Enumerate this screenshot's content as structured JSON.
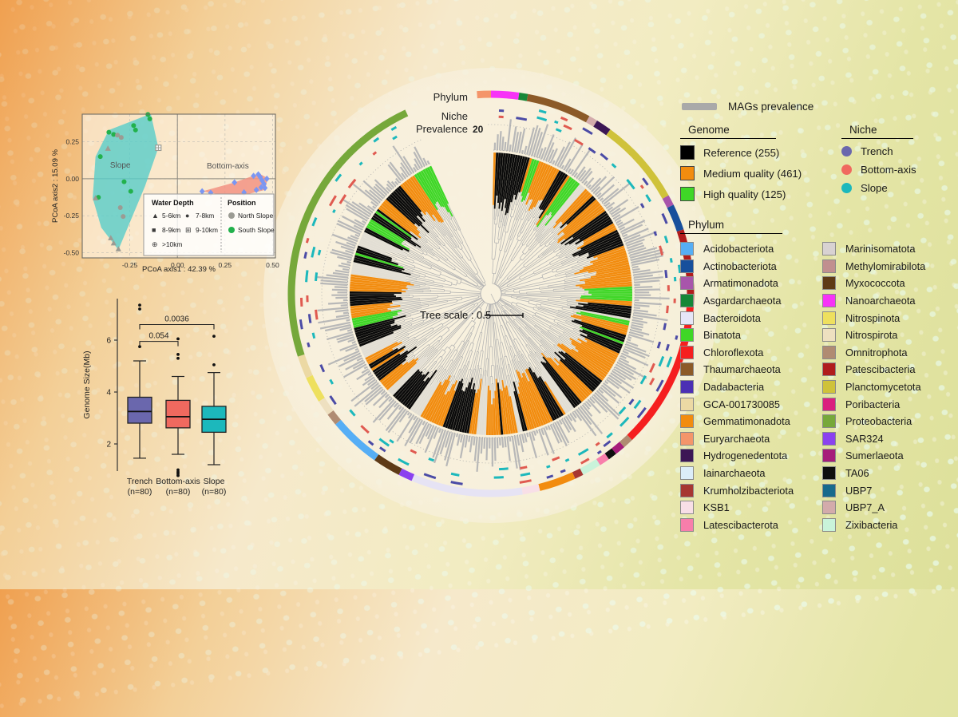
{
  "legend": {
    "mags": {
      "label": "MAGs prevalence",
      "color": "#a9a9a9"
    },
    "genome": {
      "title": "Genome",
      "items": [
        {
          "label": "Reference (255)",
          "color": "#000000"
        },
        {
          "label": "Medium quality (461)",
          "color": "#f28c0f"
        },
        {
          "label": "High quality (125)",
          "color": "#3fd727"
        }
      ]
    },
    "niche": {
      "title": "Niche",
      "items": [
        {
          "label": "Trench",
          "color": "#6a67ad"
        },
        {
          "label": "Bottom-axis",
          "color": "#f0695f"
        },
        {
          "label": "Slope",
          "color": "#1cb8bc"
        }
      ]
    },
    "phylum": {
      "title": "Phylum",
      "col1": [
        {
          "label": "Acidobacteriota",
          "color": "#56aef5"
        },
        {
          "label": "Actinobacteriota",
          "color": "#174f9c"
        },
        {
          "label": "Armatimonadota",
          "color": "#a855ab"
        },
        {
          "label": "Asgardarchaeota",
          "color": "#168737"
        },
        {
          "label": "Bacteroidota",
          "color": "#e6e6f7"
        },
        {
          "label": "Binatota",
          "color": "#3fd727"
        },
        {
          "label": "Chloroflexota",
          "color": "#f51f1f"
        },
        {
          "label": "Thaumarchaeota",
          "color": "#8c5a28"
        },
        {
          "label": "Dadabacteria",
          "color": "#4b2fb4"
        },
        {
          "label": "GCA-001730085",
          "color": "#ecd9a4"
        },
        {
          "label": "Gemmatimonadota",
          "color": "#f28c0f"
        },
        {
          "label": "Euryarchaeota",
          "color": "#f4956a"
        },
        {
          "label": "Hydrogenedentota",
          "color": "#3c1655"
        },
        {
          "label": "Iainarchaeota",
          "color": "#dcedf8"
        },
        {
          "label": "Krumholzibacteriota",
          "color": "#a63732"
        },
        {
          "label": "KSB1",
          "color": "#f8dfe7"
        },
        {
          "label": "Latescibacterota",
          "color": "#f87eab"
        }
      ],
      "col2": [
        {
          "label": "Marinisomatota",
          "color": "#d8d2d2"
        },
        {
          "label": "Methylomirabilota",
          "color": "#c18f8f"
        },
        {
          "label": "Myxococcota",
          "color": "#5e3a16"
        },
        {
          "label": "Nanoarchaeota",
          "color": "#f733f7"
        },
        {
          "label": "Nitrospinota",
          "color": "#eee05e"
        },
        {
          "label": "Nitrospirota",
          "color": "#eee0c0"
        },
        {
          "label": "Omnitrophota",
          "color": "#b08b72"
        },
        {
          "label": "Patescibacteria",
          "color": "#b01c1c"
        },
        {
          "label": "Planctomycetota",
          "color": "#cfc23a"
        },
        {
          "label": "Poribacteria",
          "color": "#da1f7e"
        },
        {
          "label": "Proteobacteria",
          "color": "#76a83a"
        },
        {
          "label": "SAR324",
          "color": "#8b41ef"
        },
        {
          "label": "Sumerlaeota",
          "color": "#a61c7a"
        },
        {
          "label": "TA06",
          "color": "#0f0f0f"
        },
        {
          "label": "UBP7",
          "color": "#176a8c"
        },
        {
          "label": "UBP7_A",
          "color": "#d3abab"
        },
        {
          "label": "Zixibacteria",
          "color": "#c9f3da"
        }
      ]
    }
  },
  "chart_data": [
    {
      "id": "pcoa",
      "type": "scatter",
      "xlabel": "PCoA axis1 : 42.39 %",
      "ylabel": "PCoA axis2 : 15.09 %",
      "xticks": [
        -0.25,
        0.0,
        0.25,
        0.5
      ],
      "yticks": [
        0.25,
        0.0,
        -0.25,
        -0.5
      ],
      "xlim": [
        -0.5,
        0.515
      ],
      "ylim": [
        -0.535,
        0.437
      ],
      "groups": [
        {
          "name": "Slope",
          "label_pos": [
            -0.3,
            0.075
          ],
          "fill": "#57cdc9",
          "fill_opacity": 0.8,
          "hull": [
            [
              -0.36,
              0.33
            ],
            [
              -0.14,
              0.44
            ],
            [
              -0.1,
              0.21
            ],
            [
              -0.17,
              -0.05
            ],
            [
              -0.31,
              -0.48
            ],
            [
              -0.4,
              -0.33
            ],
            [
              -0.445,
              -0.13
            ],
            [
              -0.43,
              0.15
            ]
          ]
        },
        {
          "name": "Bottom-axis",
          "label_pos": [
            0.265,
            0.07
          ],
          "fill": "#f29382",
          "fill_opacity": 0.85,
          "hull": [
            [
              0.13,
              -0.085
            ],
            [
              0.22,
              -0.105
            ],
            [
              0.35,
              -0.11
            ],
            [
              0.46,
              -0.075
            ],
            [
              0.475,
              0.005
            ],
            [
              0.43,
              0.035
            ],
            [
              0.3,
              -0.025
            ]
          ]
        }
      ],
      "points": [
        {
          "x": -0.36,
          "y": 0.315,
          "shape": "circle",
          "color": "#22b14c"
        },
        {
          "x": -0.335,
          "y": 0.3,
          "shape": "circle",
          "color": "#22b14c"
        },
        {
          "x": -0.23,
          "y": 0.36,
          "shape": "circle",
          "color": "#22b14c"
        },
        {
          "x": -0.155,
          "y": 0.435,
          "shape": "circle",
          "color": "#22b14c"
        },
        {
          "x": -0.145,
          "y": 0.405,
          "shape": "circle",
          "color": "#22b14c"
        },
        {
          "x": -0.405,
          "y": 0.15,
          "shape": "circle",
          "color": "#22b14c"
        },
        {
          "x": -0.28,
          "y": -0.02,
          "shape": "circle",
          "color": "#22b14c"
        },
        {
          "x": -0.245,
          "y": -0.085,
          "shape": "circle",
          "color": "#22b14c"
        },
        {
          "x": -0.415,
          "y": -0.125,
          "shape": "circle",
          "color": "#22b14c"
        },
        {
          "x": -0.22,
          "y": 0.33,
          "shape": "circle",
          "color": "#22b14c"
        },
        {
          "x": -0.315,
          "y": 0.295,
          "shape": "circle",
          "color": "#9b9b93"
        },
        {
          "x": -0.295,
          "y": 0.28,
          "shape": "circle",
          "color": "#9b9b93"
        },
        {
          "x": -0.3,
          "y": -0.195,
          "shape": "circle",
          "color": "#9b9b93"
        },
        {
          "x": -0.285,
          "y": -0.255,
          "shape": "circle",
          "color": "#9b9b93"
        },
        {
          "x": -0.365,
          "y": 0.205,
          "shape": "triangle",
          "color": "#9b9b93"
        },
        {
          "x": -0.43,
          "y": -0.13,
          "shape": "triangle",
          "color": "#9b9b93"
        },
        {
          "x": -0.35,
          "y": -0.4,
          "shape": "triangle",
          "color": "#9b9b93"
        },
        {
          "x": -0.335,
          "y": -0.435,
          "shape": "triangle",
          "color": "#9b9b93"
        },
        {
          "x": -0.31,
          "y": -0.475,
          "shape": "triangle",
          "color": "#9b9b93"
        },
        {
          "x": -0.1,
          "y": 0.21,
          "shape": "square-plus",
          "color": "#9b9b93"
        },
        {
          "x": 0.13,
          "y": -0.085,
          "shape": "diamond",
          "color": "#7b96f2"
        },
        {
          "x": 0.175,
          "y": -0.095,
          "shape": "diamond",
          "color": "#7b96f2"
        },
        {
          "x": 0.3,
          "y": -0.025,
          "shape": "diamond",
          "color": "#7b96f2"
        },
        {
          "x": 0.4,
          "y": 0.02,
          "shape": "diamond",
          "color": "#7b96f2"
        },
        {
          "x": 0.425,
          "y": 0.03,
          "shape": "diamond",
          "color": "#7b96f2"
        },
        {
          "x": 0.445,
          "y": -0.012,
          "shape": "diamond",
          "color": "#7b96f2"
        },
        {
          "x": 0.455,
          "y": -0.035,
          "shape": "diamond",
          "color": "#7b96f2"
        },
        {
          "x": 0.44,
          "y": -0.058,
          "shape": "diamond",
          "color": "#7b96f2"
        },
        {
          "x": 0.415,
          "y": -0.075,
          "shape": "diamond",
          "color": "#7b96f2"
        },
        {
          "x": 0.46,
          "y": -0.062,
          "shape": "diamond",
          "color": "#7b96f2"
        },
        {
          "x": 0.35,
          "y": -0.092,
          "shape": "diamond",
          "color": "#7b96f2"
        },
        {
          "x": 0.47,
          "y": 0.0,
          "shape": "diamond",
          "color": "#7b96f2"
        },
        {
          "x": 0.435,
          "y": 0.012,
          "shape": "diamond",
          "color": "#7b96f2"
        }
      ],
      "legend": {
        "water_depth": {
          "title": "Water Depth",
          "items": [
            {
              "symbol": "triangle",
              "label": "5-6km"
            },
            {
              "symbol": "circle",
              "label": "7-8km"
            },
            {
              "symbol": "square",
              "label": "8-9km"
            },
            {
              "symbol": "square-plus",
              "label": "9-10km"
            },
            {
              "symbol": "circle-plus",
              "label": ">10km"
            }
          ]
        },
        "position": {
          "title": "Position",
          "items": [
            {
              "color": "#9b9b93",
              "label": "North Slope"
            },
            {
              "color": "#22b14c",
              "label": "South Slope"
            }
          ]
        }
      }
    },
    {
      "id": "boxplot",
      "type": "box",
      "ylabel": "Genome Size(Mb)",
      "yticks": [
        2,
        4,
        6
      ],
      "boxes": [
        {
          "name": "Trench",
          "sub": "(n=80)",
          "color": "#6a67ad",
          "low": 1.45,
          "q1": 2.8,
          "median": 3.25,
          "q3": 3.8,
          "high": 5.2,
          "outliers": [
            5.75,
            7.2,
            7.35
          ]
        },
        {
          "name": "Bottom-axis",
          "sub": "(n=80)",
          "color": "#f0695f",
          "low": 1.6,
          "q1": 2.62,
          "median": 3.05,
          "q3": 3.68,
          "high": 4.6,
          "outliers": [
            5.3,
            5.45,
            6.05,
            1.0,
            0.92,
            0.85,
            0.78
          ]
        },
        {
          "name": "Slope",
          "sub": "(n=80)",
          "color": "#1cb8bc",
          "low": 1.2,
          "q1": 2.45,
          "median": 2.95,
          "q3": 3.45,
          "high": 4.75,
          "outliers": [
            5.05,
            6.15
          ]
        }
      ],
      "comparisons": [
        {
          "a": 0,
          "b": 1,
          "p": "0.054",
          "y": 5.95
        },
        {
          "a": 0,
          "b": 2,
          "p": "0.0036",
          "y": 6.6
        }
      ]
    },
    {
      "id": "circular-tree",
      "type": "circular-phylogeny",
      "labels": {
        "phylum": "Phylum",
        "niche": "Niche",
        "prevalence": "Prevalence",
        "prevalence_scale": "20",
        "tree_scale": "Tree scale : 0.5"
      },
      "leaf_total": 841,
      "quality_counts": {
        "Reference": 255,
        "Medium quality": 461,
        "High quality": 125
      },
      "quality_colors": {
        "reference": "#0a0a0a",
        "medium": "#f28c0f",
        "high": "#3fd727",
        "none": "#cccccc"
      },
      "prevalence": {
        "color": "#b8b8b8",
        "scale_max": 20
      },
      "niche_dash_colors": {
        "trench": "#4b4ba6",
        "bottom_axis": "#e05a50",
        "slope": "#1cb8bc"
      },
      "gap_deg": [
        336,
        360
      ],
      "phylum_ring": [
        {
          "a0": 356,
          "a1": 360,
          "color": "#f4956a"
        },
        {
          "a0": 0,
          "a1": 8,
          "color": "#f733f7"
        },
        {
          "a0": 8,
          "a1": 10.5,
          "color": "#168737"
        },
        {
          "a0": 10.5,
          "a1": 29,
          "color": "#8c5a28"
        },
        {
          "a0": 29,
          "a1": 31.5,
          "color": "#d3abab"
        },
        {
          "a0": 31.5,
          "a1": 36,
          "color": "#3c1655"
        },
        {
          "a0": 36,
          "a1": 61,
          "color": "#cfc23a"
        },
        {
          "a0": 61,
          "a1": 64,
          "color": "#a855ab"
        },
        {
          "a0": 64,
          "a1": 71.5,
          "color": "#174f9c"
        },
        {
          "a0": 71.5,
          "a1": 93,
          "color": "#b01c1c"
        },
        {
          "a0": 93,
          "a1": 136,
          "color": "#f51f1f"
        },
        {
          "a0": 136,
          "a1": 139,
          "color": "#b08b72"
        },
        {
          "a0": 139,
          "a1": 142,
          "color": "#a61c7a"
        },
        {
          "a0": 142,
          "a1": 144.5,
          "color": "#0f0f0f"
        },
        {
          "a0": 144.5,
          "a1": 147.5,
          "color": "#f87eab"
        },
        {
          "a0": 147.5,
          "a1": 153,
          "color": "#c9f3da"
        },
        {
          "a0": 153,
          "a1": 155.5,
          "color": "#a63732"
        },
        {
          "a0": 155.5,
          "a1": 166,
          "color": "#f28c0f"
        },
        {
          "a0": 166,
          "a1": 171,
          "color": "#f8dfe7"
        },
        {
          "a0": 171,
          "a1": 203,
          "color": "#e6e3f4"
        },
        {
          "a0": 203,
          "a1": 207,
          "color": "#8b41ef"
        },
        {
          "a0": 207,
          "a1": 215,
          "color": "#5e3a16"
        },
        {
          "a0": 215,
          "a1": 230,
          "color": "#56aef5"
        },
        {
          "a0": 230,
          "a1": 233.5,
          "color": "#b08b72"
        },
        {
          "a0": 233.5,
          "a1": 238,
          "color": "#eee0c0"
        },
        {
          "a0": 238,
          "a1": 245.5,
          "color": "#eee05e"
        },
        {
          "a0": 245.5,
          "a1": 252,
          "color": "#ecd9a4"
        },
        {
          "a0": 252,
          "a1": 335,
          "color": "#76a83a"
        }
      ]
    }
  ]
}
